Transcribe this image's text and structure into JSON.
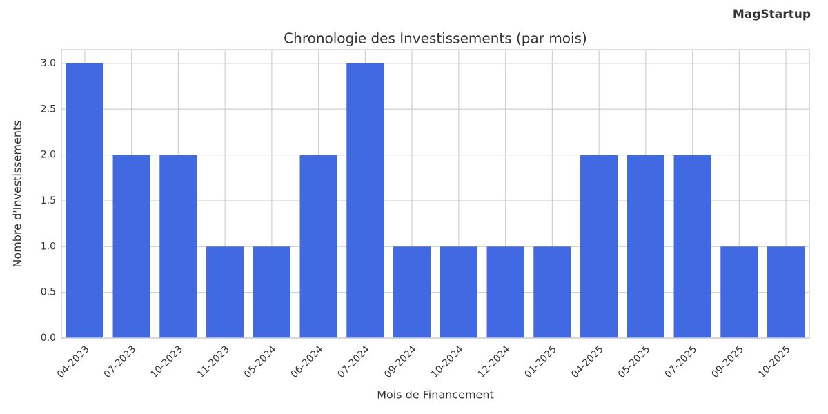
{
  "brand": "MagStartup",
  "chart_data": {
    "type": "bar",
    "title": "Chronologie des Investissements (par mois)",
    "x_label": "Mois de Financement",
    "y_label": "Nombre d'Investissements",
    "categories": [
      "04-2023",
      "07-2023",
      "10-2023",
      "11-2023",
      "05-2024",
      "06-2024",
      "07-2024",
      "09-2024",
      "10-2024",
      "12-2024",
      "01-2025",
      "04-2025",
      "05-2025",
      "07-2025",
      "09-2025",
      "10-2025"
    ],
    "values": [
      3,
      2,
      2,
      1,
      1,
      2,
      3,
      1,
      1,
      1,
      1,
      2,
      2,
      2,
      1,
      1
    ],
    "color": "#4169e1",
    "ylim": [
      0,
      3.15
    ],
    "yticks": [
      {
        "value": 0,
        "label": "0.0"
      },
      {
        "value": 0.5,
        "label": "0.5"
      },
      {
        "value": 1,
        "label": "1.0"
      },
      {
        "value": 1.5,
        "label": "1.5"
      },
      {
        "value": 2,
        "label": "2.0"
      },
      {
        "value": 2.5,
        "label": "2.5"
      },
      {
        "value": 3,
        "label": "3.0"
      }
    ],
    "grid": true
  }
}
